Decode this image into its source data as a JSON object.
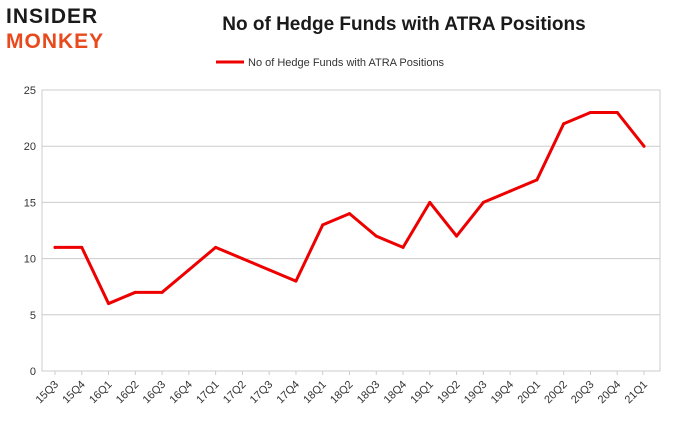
{
  "logo": {
    "top": "INSIDER",
    "bottom": "MONKEY"
  },
  "chart_data": {
    "type": "line",
    "title": "No of Hedge Funds with ATRA Positions",
    "categories": [
      "15Q3",
      "15Q4",
      "16Q1",
      "16Q2",
      "16Q3",
      "16Q4",
      "17Q1",
      "17Q2",
      "17Q3",
      "17Q4",
      "18Q1",
      "18Q2",
      "18Q3",
      "18Q4",
      "19Q1",
      "19Q2",
      "19Q3",
      "19Q4",
      "20Q1",
      "20Q2",
      "20Q3",
      "20Q4",
      "21Q1"
    ],
    "series": [
      {
        "name": "No of Hedge Funds with ATRA Positions",
        "color": "#ee0000",
        "values": [
          11,
          11,
          6,
          7,
          7,
          9,
          11,
          10,
          9,
          8,
          13,
          14,
          12,
          11,
          15,
          12,
          15,
          16,
          17,
          22,
          23,
          23,
          20
        ]
      }
    ],
    "xlabel": "",
    "ylabel": "",
    "ylim": [
      0,
      25
    ],
    "yticks": [
      0,
      5,
      10,
      15,
      20,
      25
    ],
    "grid": "horizontal",
    "legend": "top-center"
  }
}
